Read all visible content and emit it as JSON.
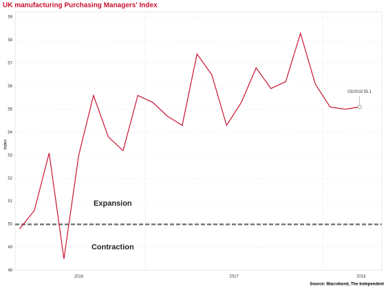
{
  "chart_data": {
    "type": "line",
    "title": "UK manufacturing Purchasing Managers' Index",
    "y_label": "Index",
    "source": "Source: Macrobond, The Independent",
    "values": [
      49.8,
      50.6,
      53.1,
      48.5,
      53.0,
      55.6,
      53.8,
      53.2,
      55.6,
      55.3,
      54.7,
      54.3,
      57.4,
      56.5,
      54.3,
      55.3,
      56.8,
      55.9,
      56.2,
      58.3,
      56.1,
      55.1,
      55.0,
      55.1
    ],
    "color": "#c8102e",
    "xlim": [
      -0.3,
      24.5
    ],
    "xticks": [
      {
        "value": 4,
        "label": "2016"
      },
      {
        "value": 14.5,
        "label": "2017"
      },
      {
        "value": 23.1,
        "label": "2018"
      }
    ],
    "xgrid": [
      8.5,
      20.5
    ],
    "ylim": [
      48,
      59
    ],
    "yticks": [
      48,
      49,
      50,
      51,
      52,
      53,
      54,
      55,
      56,
      57,
      58,
      59
    ],
    "grid": true,
    "reference_line": 50,
    "annotations": [
      {
        "text": "03/2018 55.1",
        "index": 23
      },
      {
        "text": "Expansion",
        "x": 6.3,
        "y": 50.9
      },
      {
        "text": "Contraction",
        "x": 6.3,
        "y": 49.0
      }
    ]
  }
}
